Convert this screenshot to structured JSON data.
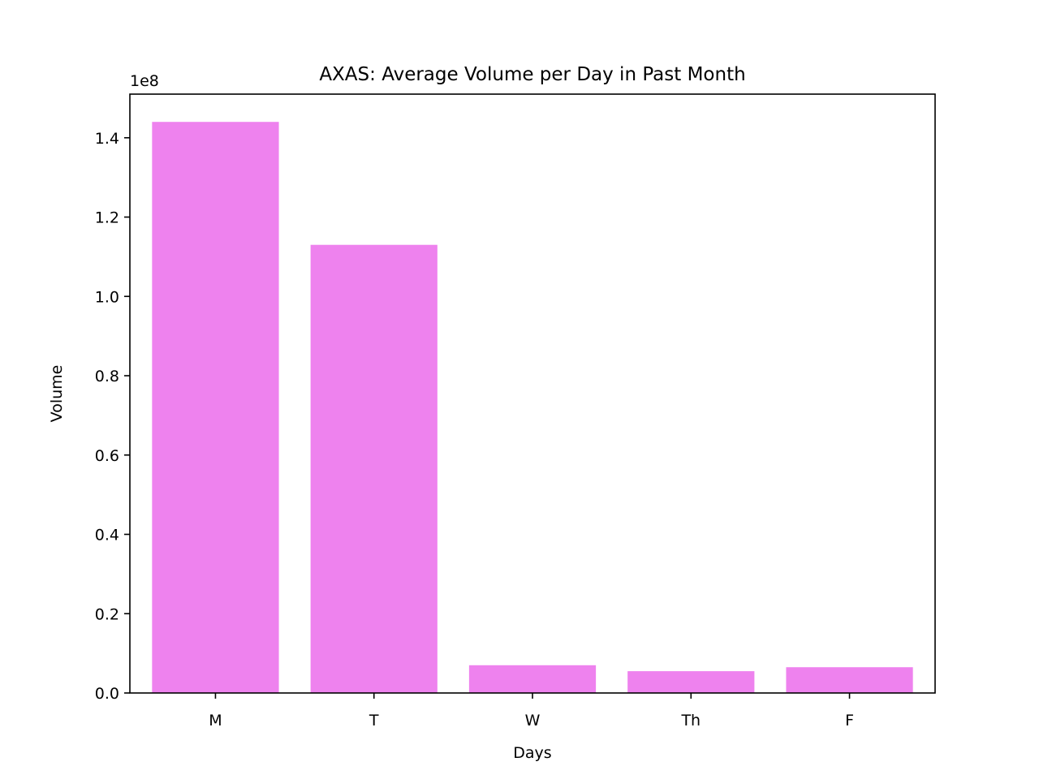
{
  "chart_data": {
    "type": "bar",
    "title": "AXAS: Average Volume per Day in Past Month",
    "xlabel": "Days",
    "ylabel": "Volume",
    "categories": [
      "M",
      "T",
      "W",
      "Th",
      "F"
    ],
    "values": [
      144000000,
      113000000,
      7000000,
      5500000,
      6500000
    ],
    "ylim": [
      0,
      151000000
    ],
    "y_ticks": [
      0,
      20000000,
      40000000,
      60000000,
      80000000,
      100000000,
      120000000,
      140000000
    ],
    "y_tick_labels": [
      "0.0",
      "0.2",
      "0.4",
      "0.6",
      "0.8",
      "1.0",
      "1.2",
      "1.4"
    ],
    "y_offset_label": "1e8",
    "bar_color": "#ee82ee",
    "grid": false,
    "legend": "none"
  }
}
